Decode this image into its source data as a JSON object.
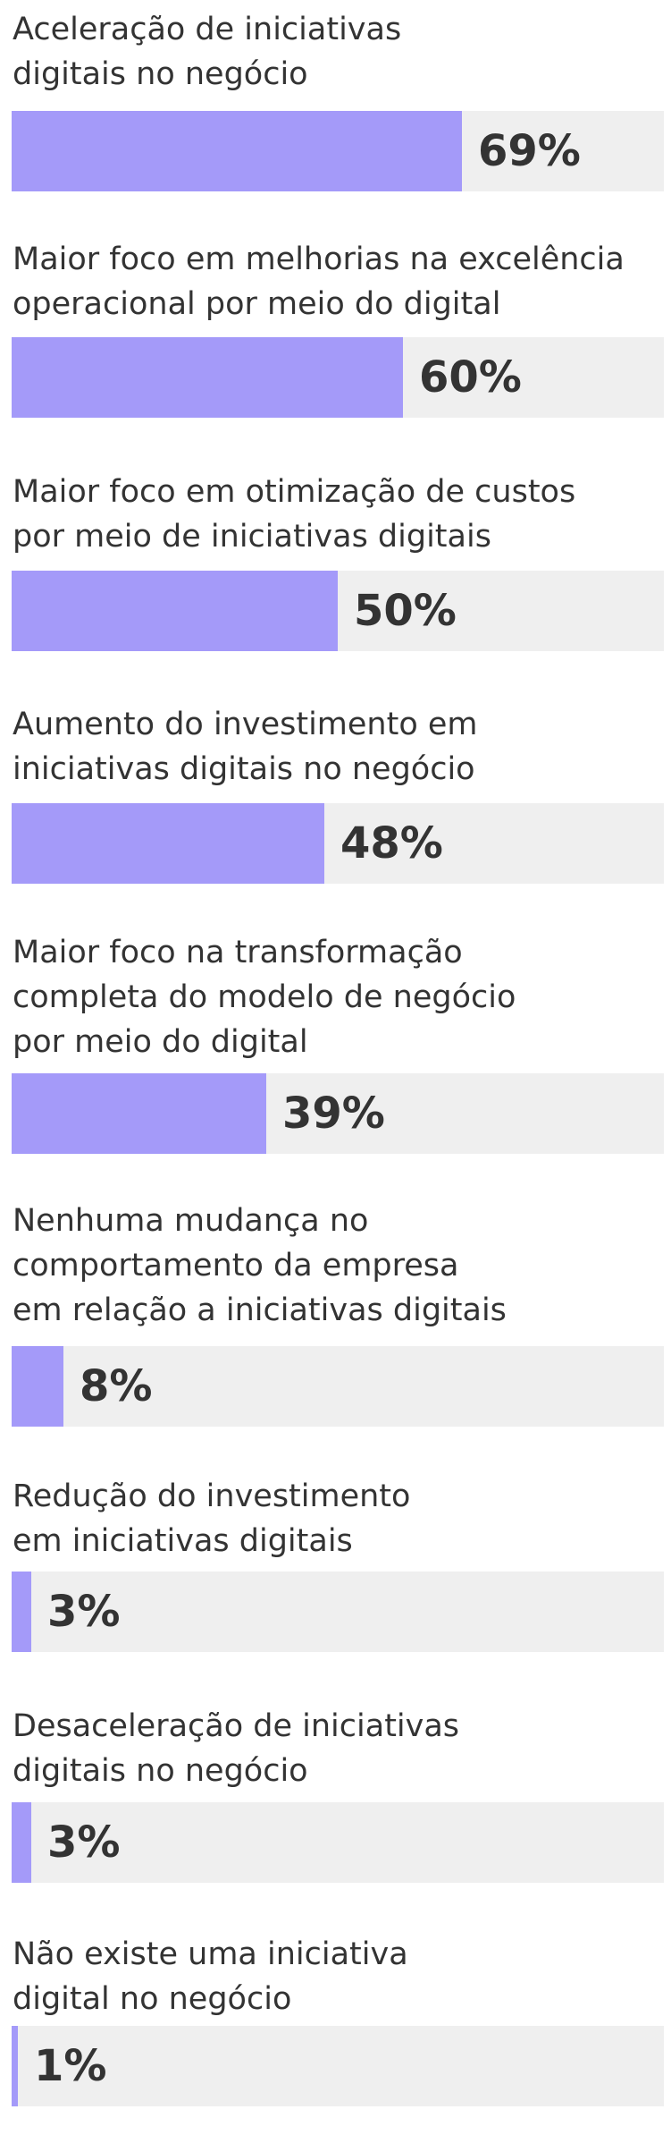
{
  "chart_data": {
    "type": "bar",
    "orientation": "horizontal",
    "categories": [
      "Aceleração de iniciativas digitais no negócio",
      "Maior foco em melhorias na excelência operacional por meio do digital",
      "Maior foco em otimização de custos por meio de iniciativas digitais",
      "Aumento do investimento em iniciativas digitais no negócio",
      "Maior foco na transformação completa do modelo de negócio por meio do digital",
      "Nenhuma mudança no comportamento da empresa em relação a iniciativas digitais",
      "Redução do investimento em iniciativas digitais",
      "Desaceleração de iniciativas digitais no negócio",
      "Não existe uma iniciativa digital no negócio"
    ],
    "label_lines": [
      [
        "Aceleração de iniciativas",
        "digitais no negócio"
      ],
      [
        "Maior foco em melhorias na excelência",
        "operacional por meio do digital"
      ],
      [
        "Maior foco em otimização de custos",
        "por meio de iniciativas digitais"
      ],
      [
        "Aumento do investimento em",
        "iniciativas digitais no negócio"
      ],
      [
        "Maior foco na transformação",
        "completa do modelo de negócio",
        "por meio do digital"
      ],
      [
        "Nenhuma mudança no",
        "comportamento da empresa",
        "em relação a iniciativas digitais"
      ],
      [
        "Redução do investimento",
        "em iniciativas digitais"
      ],
      [
        "Desaceleração de iniciativas",
        "digitais no negócio"
      ],
      [
        "Não existe uma iniciativa",
        "digital no negócio"
      ]
    ],
    "values": [
      69,
      60,
      50,
      48,
      39,
      8,
      3,
      3,
      1
    ],
    "value_labels": [
      "69%",
      "60%",
      "50%",
      "48%",
      "39%",
      "8%",
      "3%",
      "3%",
      "1%"
    ],
    "xlim": [
      0,
      100
    ],
    "unit": "%",
    "grid": false,
    "legend": "none",
    "colors": {
      "bar": "#a49af9",
      "track": "#efefef",
      "text": "#333333"
    }
  }
}
